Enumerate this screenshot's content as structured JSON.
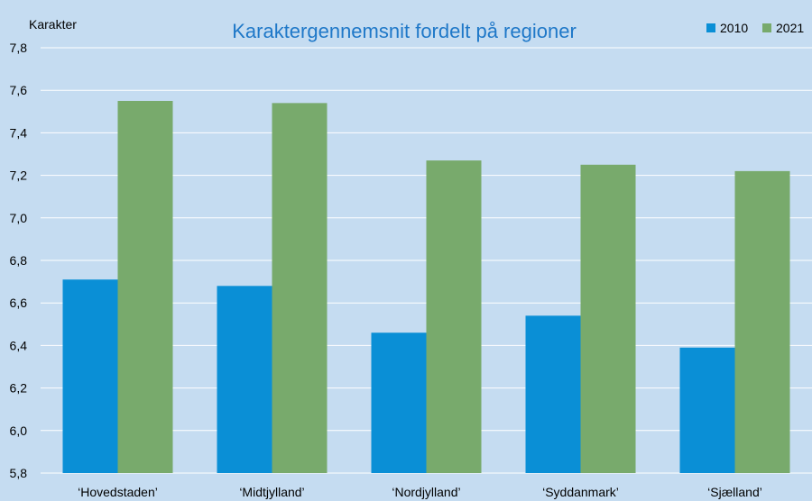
{
  "chart_data": {
    "type": "bar",
    "title": "Karaktergennemsnit fordelt på regioner",
    "ylabel": "Karakter",
    "xlabel": "",
    "ylim": [
      5.8,
      7.8
    ],
    "yticks": [
      "5,8",
      "6,0",
      "6,2",
      "6,4",
      "6,6",
      "6,8",
      "7,0",
      "7,2",
      "7,4",
      "7,6",
      "7,8"
    ],
    "ytick_values": [
      5.8,
      6.0,
      6.2,
      6.4,
      6.6,
      6.8,
      7.0,
      7.2,
      7.4,
      7.6,
      7.8
    ],
    "categories": [
      "‘Hovedstaden’",
      "‘Midtjylland’",
      "‘Nordjylland’",
      "‘Syddanmark’",
      "‘Sjælland’"
    ],
    "series": [
      {
        "name": "2010",
        "color": "#0a8fd6",
        "values": [
          6.71,
          6.68,
          6.46,
          6.54,
          6.39
        ]
      },
      {
        "name": "2021",
        "color": "#78aa6c",
        "values": [
          7.55,
          7.54,
          7.27,
          7.25,
          7.22
        ]
      }
    ],
    "grid": true,
    "legend_position": "top-right"
  }
}
